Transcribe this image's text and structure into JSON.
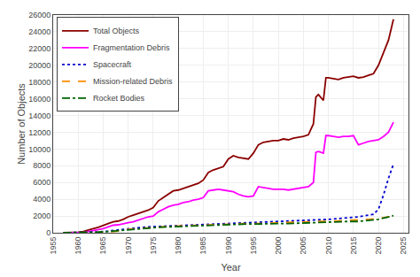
{
  "chart_data": {
    "type": "line",
    "xlabel": "Year",
    "ylabel": "Number of Objects",
    "xlim": [
      1955,
      2026
    ],
    "ylim": [
      0,
      26000
    ],
    "xticks": [
      1955,
      1960,
      1965,
      1970,
      1975,
      1980,
      1985,
      1990,
      1995,
      2000,
      2005,
      2010,
      2015,
      2020,
      2025
    ],
    "yticks": [
      0,
      2000,
      4000,
      6000,
      8000,
      10000,
      12000,
      14000,
      16000,
      18000,
      20000,
      22000,
      24000,
      26000
    ],
    "grid": true,
    "legend": "upper left",
    "series": [
      {
        "name": "Total Objects",
        "color": "#8B0000",
        "line_style": "solid",
        "x": [
          1957,
          1958,
          1959,
          1960,
          1961,
          1962,
          1963,
          1964,
          1965,
          1966,
          1967,
          1968,
          1969,
          1970,
          1971,
          1972,
          1973,
          1974,
          1975,
          1976,
          1977,
          1978,
          1979,
          1980,
          1981,
          1982,
          1983,
          1984,
          1985,
          1986,
          1987,
          1988,
          1989,
          1990,
          1991,
          1992,
          1993,
          1994,
          1995,
          1996,
          1997,
          1998,
          1999,
          2000,
          2001,
          2002,
          2003,
          2004,
          2005,
          2006,
          2007,
          2007.5,
          2008,
          2009,
          2009.5,
          2010,
          2011,
          2012,
          2013,
          2014,
          2015,
          2016,
          2017,
          2018,
          2019,
          2020,
          2021,
          2022,
          2023
        ],
        "values": [
          0,
          10,
          30,
          60,
          150,
          350,
          500,
          650,
          900,
          1100,
          1300,
          1400,
          1600,
          1900,
          2100,
          2300,
          2500,
          2700,
          3000,
          3800,
          4200,
          4600,
          5000,
          5100,
          5300,
          5500,
          5700,
          5900,
          6300,
          7200,
          7500,
          7700,
          7900,
          8800,
          9200,
          9000,
          8900,
          8800,
          9500,
          10500,
          10800,
          10900,
          11000,
          11000,
          11200,
          11100,
          11300,
          11400,
          11500,
          11700,
          13000,
          16200,
          16500,
          15800,
          18500,
          18500,
          18400,
          18300,
          18500,
          18600,
          18700,
          18500,
          18600,
          18800,
          19000,
          20000,
          21500,
          23000,
          25500
        ]
      },
      {
        "name": "Fragmentation Debris",
        "color": "#FF00FF",
        "line_style": "solid",
        "x": [
          1957,
          1958,
          1959,
          1960,
          1961,
          1962,
          1963,
          1964,
          1965,
          1966,
          1967,
          1968,
          1969,
          1970,
          1971,
          1972,
          1973,
          1974,
          1975,
          1976,
          1977,
          1978,
          1979,
          1980,
          1981,
          1982,
          1983,
          1984,
          1985,
          1986,
          1987,
          1988,
          1989,
          1990,
          1991,
          1992,
          1993,
          1994,
          1995,
          1996,
          1997,
          1998,
          1999,
          2000,
          2001,
          2002,
          2003,
          2004,
          2005,
          2006,
          2007,
          2007.5,
          2008,
          2009,
          2009.5,
          2010,
          2011,
          2012,
          2013,
          2014,
          2015,
          2016,
          2017,
          2018,
          2019,
          2020,
          2021,
          2022,
          2023
        ],
        "values": [
          0,
          5,
          10,
          20,
          50,
          150,
          250,
          350,
          500,
          700,
          900,
          950,
          1100,
          1200,
          1300,
          1500,
          1700,
          1900,
          2000,
          2500,
          2800,
          3100,
          3300,
          3400,
          3600,
          3700,
          3900,
          4000,
          4200,
          5000,
          5100,
          5200,
          5100,
          5000,
          4900,
          4600,
          4400,
          4300,
          4400,
          5500,
          5400,
          5300,
          5200,
          5200,
          5200,
          5100,
          5200,
          5300,
          5400,
          5500,
          6000,
          9600,
          9700,
          9500,
          11600,
          11600,
          11500,
          11400,
          11500,
          11500,
          11600,
          10500,
          10700,
          10900,
          11000,
          11100,
          11500,
          12000,
          13200
        ]
      },
      {
        "name": "Spacecraft",
        "color": "#0000CC",
        "line_style": "dotted",
        "x": [
          1957,
          1958,
          1960,
          1962,
          1964,
          1966,
          1968,
          1970,
          1972,
          1974,
          1976,
          1978,
          1980,
          1982,
          1984,
          1986,
          1988,
          1990,
          1992,
          1994,
          1996,
          1998,
          2000,
          2002,
          2004,
          2006,
          2008,
          2010,
          2012,
          2014,
          2016,
          2018,
          2019,
          2020,
          2021,
          2022,
          2023
        ],
        "values": [
          0,
          3,
          15,
          50,
          100,
          200,
          350,
          500,
          600,
          700,
          750,
          800,
          850,
          900,
          950,
          1000,
          1050,
          1100,
          1100,
          1150,
          1200,
          1300,
          1350,
          1400,
          1450,
          1500,
          1550,
          1600,
          1700,
          1800,
          1900,
          2100,
          2200,
          2800,
          4500,
          6500,
          8200
        ]
      },
      {
        "name": "Mission-related Debris",
        "color": "#FF8C00",
        "line_style": "dashed",
        "x": [
          1957,
          1960,
          1962,
          1964,
          1966,
          1968,
          1970,
          1972,
          1974,
          1976,
          1978,
          1980,
          1982,
          1984,
          1986,
          1988,
          1990,
          1992,
          1994,
          1996,
          1998,
          2000,
          2002,
          2004,
          2006,
          2008,
          2010,
          2012,
          2014,
          2016,
          2018,
          2020,
          2022,
          2023
        ],
        "values": [
          0,
          5,
          20,
          50,
          100,
          200,
          400,
          500,
          600,
          700,
          750,
          800,
          850,
          900,
          950,
          1000,
          1000,
          1050,
          1100,
          1100,
          1150,
          1200,
          1200,
          1250,
          1300,
          1350,
          1350,
          1400,
          1450,
          1500,
          1600,
          1700,
          1900,
          2000
        ]
      },
      {
        "name": "Rocket Bodies",
        "color": "#006400",
        "line_style": "dashdot",
        "x": [
          1957,
          1960,
          1962,
          1964,
          1966,
          1968,
          1970,
          1972,
          1974,
          1976,
          1978,
          1980,
          1982,
          1984,
          1986,
          1988,
          1990,
          1992,
          1994,
          1996,
          1998,
          2000,
          2002,
          2004,
          2006,
          2008,
          2010,
          2012,
          2014,
          2016,
          2018,
          2020,
          2022,
          2023
        ],
        "values": [
          0,
          5,
          30,
          80,
          150,
          250,
          400,
          500,
          600,
          650,
          700,
          750,
          800,
          850,
          900,
          950,
          1000,
          1000,
          1050,
          1050,
          1100,
          1100,
          1100,
          1150,
          1200,
          1250,
          1250,
          1300,
          1350,
          1350,
          1450,
          1600,
          1900,
          2050
        ]
      }
    ]
  }
}
